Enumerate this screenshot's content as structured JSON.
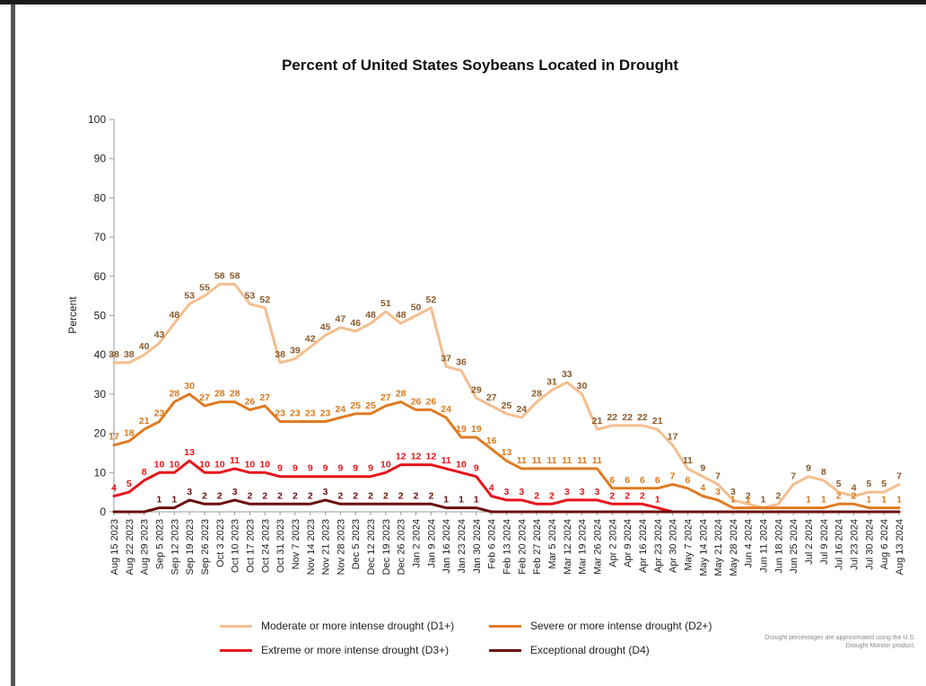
{
  "chart_data": {
    "type": "line",
    "title": "Percent of United States Soybeans  Located in Drought",
    "ylabel": "Percent",
    "xlabel": "",
    "ylim": [
      0,
      100
    ],
    "yticks": [
      0,
      10,
      20,
      30,
      40,
      50,
      60,
      70,
      80,
      90,
      100
    ],
    "grid": false,
    "legend_position": "bottom",
    "categories": [
      "Aug 15 2023",
      "Aug 22 2023",
      "Aug 29 2023",
      "Sep 5 2023",
      "Sep 12 2023",
      "Sep 19 2023",
      "Sep 26 2023",
      "Oct 3 2023",
      "Oct 10 2023",
      "Oct 17 2023",
      "Oct 24 2023",
      "Oct 31 2023",
      "Nov 7 2023",
      "Nov 14 2023",
      "Nov 21 2023",
      "Nov 28 2023",
      "Dec 5 2023",
      "Dec 12 2023",
      "Dec 19 2023",
      "Dec 26 2023",
      "Jan 2 2024",
      "Jan 9 2024",
      "Jan 16 2024",
      "Jan 23 2024",
      "Jan 30 2024",
      "Feb 6 2024",
      "Feb 13 2024",
      "Feb 20 2024",
      "Feb 27 2024",
      "Mar 5 2024",
      "Mar 12 2024",
      "Mar 19 2024",
      "Mar 26 2024",
      "Apr 2 2024",
      "Apr 9 2024",
      "Apr 16 2024",
      "Apr 23 2024",
      "Apr 30 2024",
      "May 7 2024",
      "May 14 2024",
      "May 21 2024",
      "May 28 2024",
      "Jun 4 2024",
      "Jun 11 2024",
      "Jun 18 2024",
      "Jun 25 2024",
      "Jul 2 2024",
      "Jul 9 2024",
      "Jul 16 2024",
      "Jul 23 2024",
      "Jul 30 2024",
      "Aug 6 2024",
      "Aug 13 2024"
    ],
    "xtick_labels": [
      "Aug 15 2023",
      "Aug 22 2023",
      "Aug 29 2023",
      "Sep 5 2023",
      "Sep 12 2023",
      "Sep 19 2023",
      "Sep 26 2023",
      "Oct 3 2023",
      "Oct 10 2023",
      "Oct 17 2023",
      "Oct 24 2023",
      "Oct 31 2023",
      "Nov 7 2023",
      "Nov 14 2023",
      "Nov 21 2023",
      "Nov 28 2023",
      "Dec 5 2023",
      "Dec 12 2023",
      "Dec 19 2023",
      "Dec 26 2023",
      "Jan 2 2024",
      "Jan 9 2024",
      "Jan 16 2024",
      "Jan 23 2024",
      "Jan 30 2024",
      "Feb 6 2024",
      "Feb 13 2024",
      "Feb 20 2024",
      "Feb 27 2024",
      "Mar 5 2024",
      "Mar 12 2024",
      "Mar 19 2024",
      "Mar 26 2024",
      "Apr 2 2024",
      "Apr 9 2024",
      "Apr 16 2024",
      "Apr 23 2024",
      "Apr 30 2024",
      "May 7 2024",
      "May 14 2024",
      "May 21 2024",
      "May 28 2024",
      "Jun 4 2024",
      "Jun 11 2024",
      "Jun 18 2024",
      "Jun 25 2024",
      "Jul 2 2024",
      "Jul 9 2024",
      "Jul 16 2024",
      "Jul 23 2024",
      "Jul 30 2024",
      "Aug 6 2024",
      "Aug 13 2024"
    ],
    "series": [
      {
        "name": "Moderate or more intense drought (D1+)",
        "color": "#F4BE8E",
        "label_color": "#8B5A2B",
        "values": [
          38,
          38,
          40,
          43,
          48,
          53,
          55,
          58,
          58,
          53,
          52,
          38,
          39,
          42,
          45,
          47,
          46,
          48,
          51,
          48,
          50,
          52,
          37,
          36,
          29,
          27,
          25,
          24,
          28,
          31,
          33,
          30,
          21,
          22,
          22,
          22,
          21,
          17,
          11,
          9,
          7,
          3,
          2,
          1,
          2,
          7,
          9,
          8,
          5,
          4,
          5,
          5,
          7
        ],
        "labels": [
          "38",
          "38",
          "40",
          "43",
          "48",
          "53",
          "55",
          "58",
          "58",
          "53",
          "52",
          "38",
          "39",
          "42",
          "45",
          "47",
          "46",
          "48",
          "51",
          "48",
          "50",
          "52",
          "37",
          "36",
          "29",
          "27",
          "25",
          "24",
          "28",
          "31",
          "33",
          "30",
          "21",
          "22",
          "22",
          "22",
          "21",
          "17",
          "11",
          "9",
          "7",
          "3",
          "2",
          "1",
          "2",
          "7",
          "9",
          "8",
          "5",
          "4",
          "5",
          "5",
          "7"
        ]
      },
      {
        "name": "Severe or more intense drought (D2+)",
        "color": "#E07B22",
        "label_color": "#D97A1E",
        "values": [
          17,
          18,
          21,
          23,
          28,
          30,
          27,
          28,
          28,
          26,
          27,
          23,
          23,
          23,
          23,
          24,
          25,
          25,
          27,
          28,
          26,
          26,
          24,
          19,
          19,
          16,
          13,
          11,
          11,
          11,
          11,
          11,
          11,
          6,
          6,
          6,
          6,
          7,
          6,
          4,
          3,
          1,
          1,
          1,
          1,
          1,
          1,
          1,
          2,
          2,
          1,
          1,
          1
        ],
        "labels": [
          "17",
          "18",
          "21",
          "23",
          "28",
          "30",
          "27",
          "28",
          "28",
          "26",
          "27",
          "23",
          "23",
          "23",
          "23",
          "24",
          "25",
          "25",
          "27",
          "28",
          "26",
          "26",
          "24",
          "19",
          "19",
          "16",
          "13",
          "11",
          "11",
          "11",
          "11",
          "11",
          "11",
          "6",
          "6",
          "6",
          "6",
          "7",
          "6",
          "4",
          "3",
          "1",
          "1",
          "",
          "",
          "",
          "1",
          "1",
          "2",
          "2",
          "1",
          "1",
          "1"
        ]
      },
      {
        "name": "Extreme or more intense drought (D3+)",
        "color": "#E8141C",
        "label_color": "#E8141C",
        "values": [
          4,
          5,
          8,
          10,
          10,
          13,
          10,
          10,
          11,
          10,
          10,
          9,
          9,
          9,
          9,
          9,
          9,
          9,
          10,
          12,
          12,
          12,
          11,
          10,
          9,
          4,
          3,
          3,
          2,
          2,
          3,
          3,
          3,
          2,
          2,
          2,
          1,
          0,
          0,
          0,
          0,
          0,
          0,
          0,
          0,
          0,
          0,
          0,
          0,
          0,
          0,
          0,
          0
        ],
        "labels": [
          "4",
          "5",
          "8",
          "10",
          "10",
          "13",
          "10",
          "10",
          "11",
          "10",
          "10",
          "9",
          "9",
          "9",
          "9",
          "9",
          "9",
          "9",
          "10",
          "12",
          "12",
          "12",
          "11",
          "10",
          "9",
          "4",
          "3",
          "3",
          "2",
          "2",
          "3",
          "3",
          "3",
          "2",
          "2",
          "2",
          "1",
          "",
          "",
          "",
          "",
          "",
          "",
          "",
          "",
          "",
          "",
          "",
          "",
          "",
          "",
          "",
          ""
        ]
      },
      {
        "name": "Exceptional drought (D4)",
        "color": "#6B0F0F",
        "label_color": "#6B0F0F",
        "values": [
          0,
          0,
          0,
          1,
          1,
          3,
          2,
          2,
          3,
          2,
          2,
          2,
          2,
          2,
          3,
          2,
          2,
          2,
          2,
          2,
          2,
          2,
          1,
          1,
          1,
          0,
          0,
          0,
          0,
          0,
          0,
          0,
          0,
          0,
          0,
          0,
          0,
          0,
          0,
          0,
          0,
          0,
          0,
          0,
          0,
          0,
          0,
          0,
          0,
          0,
          0,
          0,
          0
        ],
        "labels": [
          "",
          "",
          "",
          "1",
          "1",
          "3",
          "2",
          "2",
          "3",
          "2",
          "2",
          "2",
          "2",
          "2",
          "3",
          "2",
          "2",
          "2",
          "2",
          "2",
          "2",
          "2",
          "1",
          "1",
          "1",
          "",
          "",
          "",
          "",
          "",
          "",
          "",
          "",
          "",
          "",
          "",
          "",
          "",
          "",
          "",
          "",
          "",
          "",
          "",
          "",
          "",
          "",
          "",
          "",
          "",
          "",
          "",
          ""
        ]
      }
    ],
    "note": "Drought percentages are approximated using the U.S. Drought Monitor product."
  },
  "colors": {
    "d1": "#F4BE8E",
    "d2": "#E07B22",
    "d3": "#E8141C",
    "d4": "#6B0F0F"
  }
}
